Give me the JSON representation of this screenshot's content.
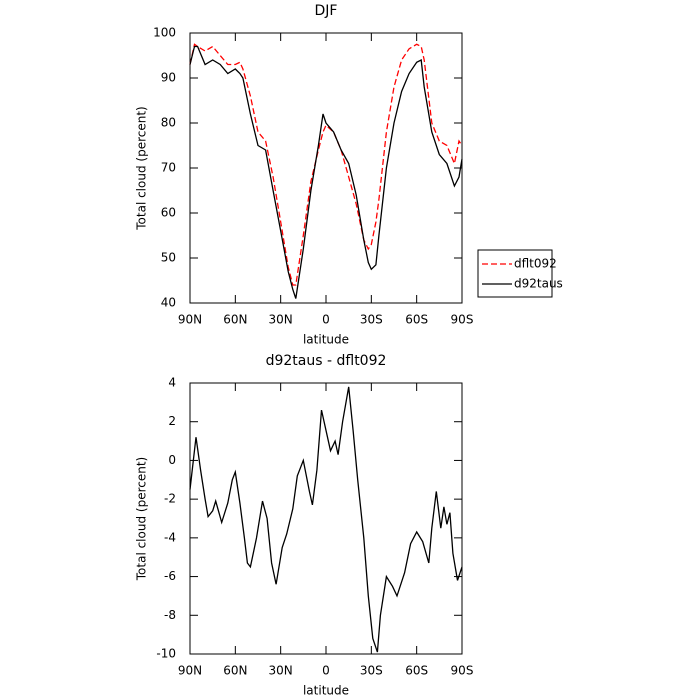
{
  "chart_data": [
    {
      "type": "line",
      "title": "DJF",
      "xlabel": "latitude",
      "ylabel": "Total cloud (percent)",
      "x": [
        90,
        87,
        85,
        80,
        75,
        70,
        65,
        60,
        57,
        55,
        50,
        45,
        40,
        35,
        30,
        25,
        22,
        20,
        15,
        10,
        5,
        2,
        0,
        -5,
        -10,
        -15,
        -20,
        -25,
        -28,
        -30,
        -33,
        -35,
        -40,
        -45,
        -50,
        -55,
        -60,
        -63,
        -65,
        -70,
        -75,
        -80,
        -85,
        -88,
        -90
      ],
      "series": [
        {
          "name": "dflt092",
          "color": "#ff0000",
          "dash": true,
          "values": [
            93,
            97.5,
            97,
            96,
            97,
            95,
            93,
            93,
            93.5,
            92,
            86,
            78,
            76,
            68,
            58,
            48,
            44,
            44,
            55,
            67,
            74,
            78,
            79.5,
            78,
            74,
            68,
            62,
            54,
            52,
            53,
            58,
            63,
            78,
            88,
            94,
            96.5,
            97.5,
            97,
            94,
            80,
            76,
            75,
            71,
            76,
            75
          ]
        },
        {
          "name": "d92taus",
          "color": "#000000",
          "dash": false,
          "values": [
            93,
            97,
            97,
            93,
            94,
            93,
            91,
            92,
            91,
            90,
            82,
            75,
            74,
            65,
            56,
            47,
            43,
            41,
            52,
            65,
            75,
            82,
            80,
            78,
            74,
            71,
            64,
            54,
            49,
            47.5,
            48.5,
            55,
            70,
            80,
            87,
            91,
            93.5,
            94,
            88,
            78,
            73,
            71,
            66,
            68,
            72
          ]
        }
      ],
      "xlim": [
        90,
        -90
      ],
      "xticks": [
        {
          "value": 90,
          "label": "90N"
        },
        {
          "value": 60,
          "label": "60N"
        },
        {
          "value": 30,
          "label": "30N"
        },
        0,
        {
          "value": -30,
          "label": "30S"
        },
        {
          "value": -60,
          "label": "60S"
        },
        {
          "value": -90,
          "label": "90S"
        }
      ],
      "ylim": [
        40,
        100
      ],
      "yticks": [
        40,
        50,
        60,
        70,
        80,
        90,
        100
      ],
      "legend": "right"
    },
    {
      "type": "line",
      "title": "d92taus - dflt092",
      "xlabel": "latitude",
      "ylabel": "Total cloud (percent)",
      "x": [
        90,
        86,
        83,
        80,
        78,
        75,
        73,
        69,
        65,
        62,
        60,
        57,
        54,
        52,
        50,
        46,
        42,
        39,
        36,
        33,
        29,
        26,
        22,
        19,
        15,
        11,
        9,
        6,
        3,
        -1,
        -3,
        -6,
        -8,
        -11,
        -15,
        -18,
        -21,
        -25,
        -28,
        -31,
        -34,
        -36,
        -40,
        -44,
        -47,
        -52,
        -56,
        -60,
        -64,
        -68,
        -70,
        -73,
        -76,
        -78,
        -80,
        -82,
        -84,
        -87,
        -90
      ],
      "series": [
        {
          "name": "d92taus - dflt092",
          "color": "#000000",
          "dash": false,
          "values": [
            -1.5,
            1.2,
            -0.5,
            -2,
            -2.9,
            -2.6,
            -2.1,
            -3.2,
            -2.2,
            -1,
            -0.6,
            -2.2,
            -4,
            -5.3,
            -5.5,
            -4,
            -2.1,
            -3,
            -5.3,
            -6.4,
            -4.5,
            -3.8,
            -2.5,
            -0.8,
            0,
            -1.6,
            -2.3,
            -0.5,
            2.6,
            1.2,
            0.5,
            1,
            0.3,
            2,
            3.8,
            1.5,
            -1,
            -4,
            -7,
            -9.2,
            -9.9,
            -8,
            -6,
            -6.5,
            -7,
            -5.8,
            -4.3,
            -3.7,
            -4.2,
            -5.3,
            -3.5,
            -1.6,
            -3.5,
            -2.4,
            -3.3,
            -2.7,
            -4.8,
            -6.2,
            -5.5
          ]
        }
      ],
      "xlim": [
        90,
        -90
      ],
      "xticks": [
        {
          "value": 90,
          "label": "90N"
        },
        {
          "value": 60,
          "label": "60N"
        },
        {
          "value": 30,
          "label": "30N"
        },
        0,
        {
          "value": -30,
          "label": "30S"
        },
        {
          "value": -60,
          "label": "60S"
        },
        {
          "value": -90,
          "label": "90S"
        }
      ],
      "ylim": [
        -10,
        4
      ],
      "yticks": [
        -10,
        -8,
        -6,
        -4,
        -2,
        0,
        2,
        4
      ]
    }
  ]
}
